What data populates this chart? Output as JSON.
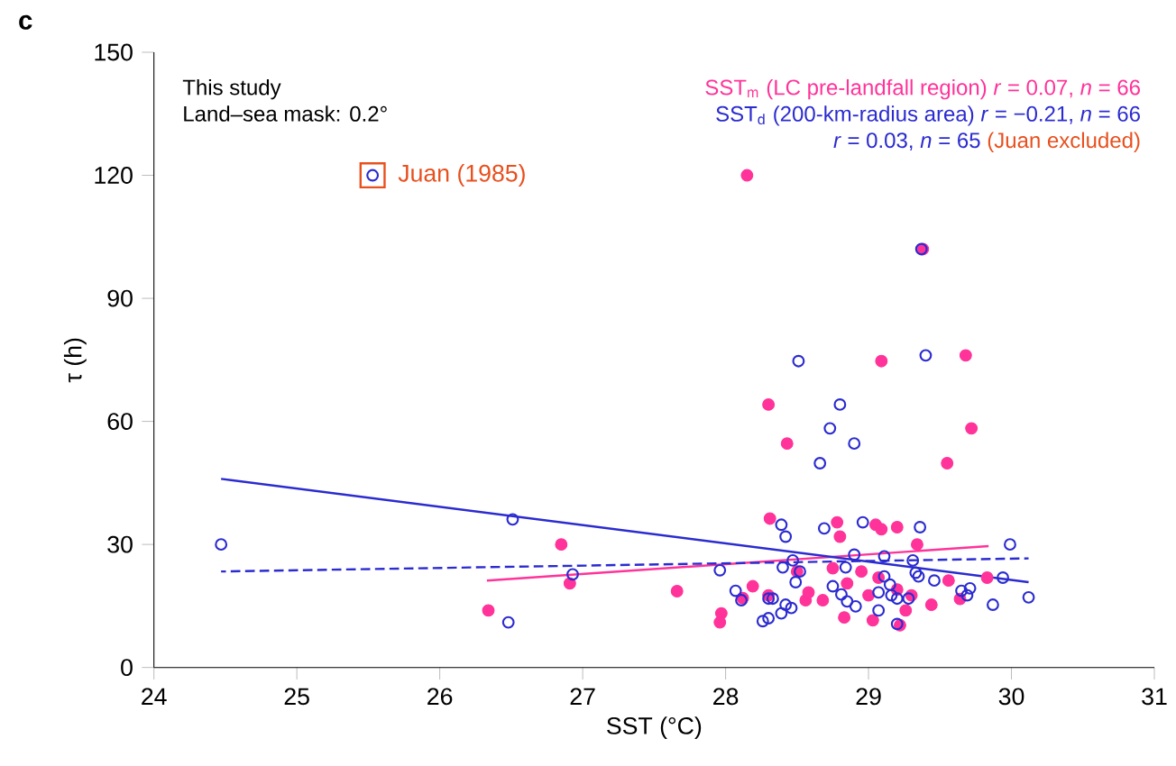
{
  "chart_data": {
    "type": "scatter",
    "title": "c",
    "xlabel": "SST (°C)",
    "ylabel": "τ (h)",
    "xlim": [
      24,
      31
    ],
    "xticks": [
      24,
      25,
      26,
      27,
      28,
      29,
      30,
      31
    ],
    "ylim": [
      0,
      150
    ],
    "yticks": [
      0,
      30,
      60,
      90,
      120,
      150
    ],
    "grid": false,
    "legend": "top right",
    "marker": "circle",
    "annotations": [
      "This study",
      "Land–sea mask: 0.2°",
      "(Juan excluded)",
      {
        "text": "Juan (1985)",
        "x": 25.53,
        "y": 120
      }
    ],
    "series": [
      {
        "name": "SST$_{m}$ (LC pre-landfall region) *r* = 0.07, *n* = 66",
        "color": "#ff3399",
        "x": [
          26.34,
          26.85,
          26.91,
          27.66,
          27.97,
          27.96,
          28.12,
          28.19,
          28.3,
          28.31,
          28.5,
          28.56,
          28.58,
          28.68,
          28.75,
          28.78,
          28.8,
          28.83,
          28.85,
          28.95,
          29.0,
          29.03,
          29.05,
          29.07,
          29.09,
          29.2,
          29.2,
          29.22,
          29.26,
          29.3,
          29.34,
          29.44,
          29.56,
          29.64,
          29.83,
          28.15,
          29.38,
          29.09,
          29.68,
          28.3,
          29.72,
          28.43,
          29.55
        ],
        "values": [
          13.9,
          30,
          20.5,
          18.6,
          13.2,
          11.0,
          16.9,
          19.8,
          17.6,
          36.3,
          23.4,
          16.4,
          18.3,
          16.4,
          24.2,
          35.4,
          31.9,
          12.2,
          20.5,
          23.4,
          17.6,
          11.5,
          34.8,
          21.9,
          33.7,
          34.2,
          19.0,
          10.3,
          13.9,
          17.6,
          30.0,
          15.3,
          21.2,
          16.7,
          21.9,
          120,
          102,
          74.7,
          76.1,
          64.1,
          58.3,
          54.6,
          49.8
        ]
      },
      {
        "name": "SST$_{d}$ (200-km-radius area) *r* = −0.21, *n* = 66",
        "color": "#2b2bd0",
        "x": [
          24.47,
          25.53,
          26.48,
          26.51,
          26.93,
          27.96,
          28.07,
          28.11,
          28.26,
          28.3,
          28.3,
          28.33,
          28.39,
          28.39,
          28.4,
          28.42,
          28.42,
          28.46,
          28.47,
          28.49,
          28.52,
          28.69,
          28.75,
          28.81,
          28.84,
          28.85,
          28.9,
          28.91,
          28.96,
          29.07,
          29.07,
          29.11,
          29.11,
          29.15,
          29.16,
          29.2,
          29.2,
          29.28,
          29.31,
          29.33,
          29.35,
          29.36,
          29.46,
          29.65,
          29.69,
          29.71,
          29.87,
          29.94,
          29.99,
          30.12,
          29.37,
          28.51,
          29.4,
          28.8,
          28.73,
          28.9,
          28.66
        ],
        "values": [
          30,
          120,
          11,
          36.1,
          22.7,
          23.7,
          18.7,
          16.4,
          11.3,
          12.0,
          16.8,
          16.8,
          13.2,
          34.8,
          24.4,
          31.9,
          15.3,
          14.5,
          26.1,
          20.8,
          23.4,
          33.9,
          19.8,
          17.8,
          24.4,
          16.1,
          27.5,
          14.9,
          35.4,
          18.3,
          13.9,
          27.1,
          22.2,
          20.2,
          17.6,
          16.8,
          10.6,
          16.8,
          26.1,
          23.1,
          22.2,
          34.2,
          21.2,
          18.7,
          17.6,
          19.3,
          15.3,
          21.9,
          30.0,
          17.1,
          102,
          74.7,
          76.1,
          64.1,
          58.3,
          54.6,
          49.8
        ]
      },
      {
        "color": "#ff3399",
        "type": "line",
        "marker": "none",
        "line_style": "solid",
        "x": [
          26.33,
          29.84
        ],
        "values": [
          21.2,
          29.6
        ]
      },
      {
        "color": "#2b2bd0",
        "type": "line",
        "marker": "none",
        "line_style": "solid",
        "x": [
          24.47,
          30.12
        ],
        "values": [
          46,
          20.8
        ]
      },
      {
        "name": "*r* = 0.03, *n* = 65",
        "color": "#2b2bd0",
        "type": "line",
        "marker": "none",
        "line_style": "dashed",
        "x": [
          24.47,
          30.12
        ],
        "values": [
          23.4,
          26.6
        ]
      }
    ]
  }
}
